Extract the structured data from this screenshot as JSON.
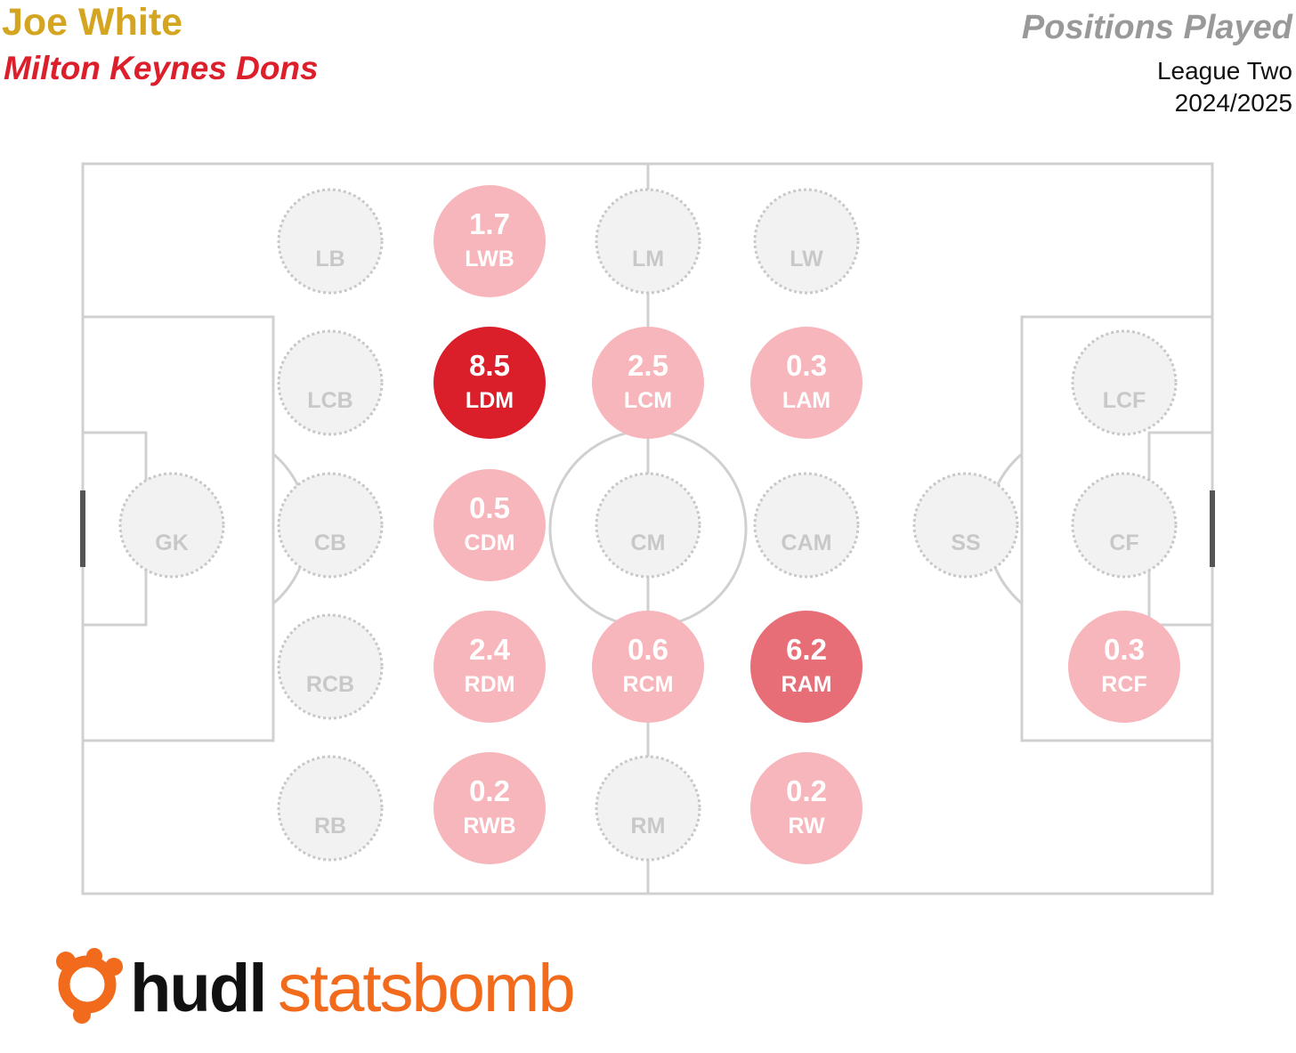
{
  "header": {
    "player_name": "Joe White",
    "team_name": "Milton Keynes Dons",
    "chart_title": "Positions Played",
    "competition": "League Two",
    "season": "2024/2025"
  },
  "logo": {
    "text_primary": "hudl",
    "text_secondary": "statsbomb",
    "icon": "hudl-statsbomb-logo-icon"
  },
  "colors": {
    "pitch_line": "#d0d0d0",
    "inactive_fill": "#f2f2f2",
    "inactive_border": "#c8c8c8",
    "inactive_text": "#c8c8c8",
    "low_fill": "#f7b6bb",
    "mid_fill": "#e76e77",
    "high_fill": "#da1f2b",
    "player_name": "#d4a520",
    "team_name": "#dc1f2b",
    "logo_orange": "#f26b1d",
    "logo_black": "#111111"
  },
  "chart_data": {
    "type": "pitch-position-map",
    "title": "Positions Played",
    "positions": [
      {
        "code": "GK",
        "value": null
      },
      {
        "code": "LB",
        "value": null
      },
      {
        "code": "LCB",
        "value": null
      },
      {
        "code": "CB",
        "value": null
      },
      {
        "code": "RCB",
        "value": null
      },
      {
        "code": "RB",
        "value": null
      },
      {
        "code": "LWB",
        "value": 1.7
      },
      {
        "code": "LDM",
        "value": 8.5
      },
      {
        "code": "CDM",
        "value": 0.5
      },
      {
        "code": "RDM",
        "value": 2.4
      },
      {
        "code": "RWB",
        "value": 0.2
      },
      {
        "code": "LM",
        "value": null
      },
      {
        "code": "LCM",
        "value": 2.5
      },
      {
        "code": "CM",
        "value": null
      },
      {
        "code": "RCM",
        "value": 0.6
      },
      {
        "code": "RM",
        "value": null
      },
      {
        "code": "LW",
        "value": null
      },
      {
        "code": "LAM",
        "value": 0.3
      },
      {
        "code": "CAM",
        "value": null
      },
      {
        "code": "RAM",
        "value": 6.2
      },
      {
        "code": "RW",
        "value": 0.2
      },
      {
        "code": "SS",
        "value": null
      },
      {
        "code": "LCF",
        "value": null
      },
      {
        "code": "CF",
        "value": null
      },
      {
        "code": "RCF",
        "value": 0.3
      }
    ]
  }
}
